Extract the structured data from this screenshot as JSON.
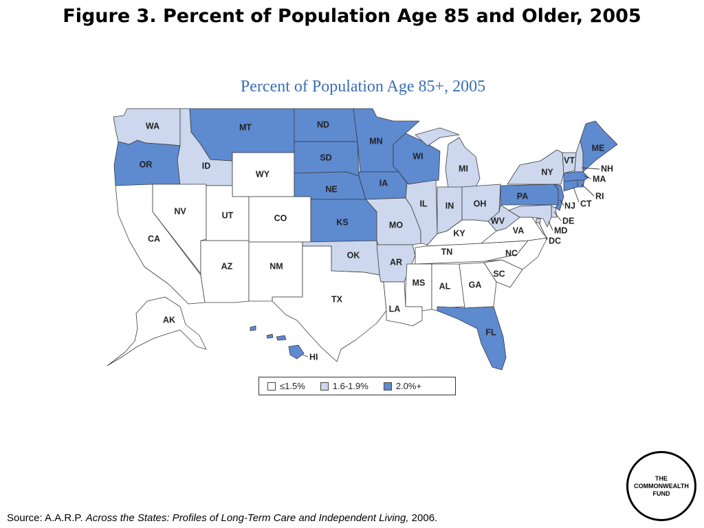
{
  "slide_title": "Figure 3. Percent of Population Age 85 and Older, 2005",
  "map_title": "Percent of Population Age 85+, 2005",
  "colors": {
    "low": "#ffffff",
    "mid": "#cdd8ee",
    "high": "#5e8ad0",
    "title_blue": "#3a6fb4"
  },
  "legend": [
    {
      "label": "≤1.5%",
      "category": "low"
    },
    {
      "label": "1.6-1.9%",
      "category": "mid"
    },
    {
      "label": "2.0%+",
      "category": "high"
    }
  ],
  "states": [
    {
      "code": "WA",
      "category": "mid"
    },
    {
      "code": "OR",
      "category": "high"
    },
    {
      "code": "CA",
      "category": "low"
    },
    {
      "code": "ID",
      "category": "mid"
    },
    {
      "code": "NV",
      "category": "low"
    },
    {
      "code": "MT",
      "category": "high"
    },
    {
      "code": "WY",
      "category": "low"
    },
    {
      "code": "UT",
      "category": "low"
    },
    {
      "code": "CO",
      "category": "low"
    },
    {
      "code": "AZ",
      "category": "low"
    },
    {
      "code": "NM",
      "category": "low"
    },
    {
      "code": "ND",
      "category": "high"
    },
    {
      "code": "SD",
      "category": "high"
    },
    {
      "code": "NE",
      "category": "high"
    },
    {
      "code": "KS",
      "category": "high"
    },
    {
      "code": "OK",
      "category": "mid"
    },
    {
      "code": "TX",
      "category": "low"
    },
    {
      "code": "MN",
      "category": "high"
    },
    {
      "code": "IA",
      "category": "high"
    },
    {
      "code": "MO",
      "category": "mid"
    },
    {
      "code": "AR",
      "category": "mid"
    },
    {
      "code": "LA",
      "category": "low"
    },
    {
      "code": "WI",
      "category": "high"
    },
    {
      "code": "IL",
      "category": "mid"
    },
    {
      "code": "MI",
      "category": "mid"
    },
    {
      "code": "IN",
      "category": "mid"
    },
    {
      "code": "OH",
      "category": "mid"
    },
    {
      "code": "KY",
      "category": "low"
    },
    {
      "code": "TN",
      "category": "low"
    },
    {
      "code": "MS",
      "category": "low"
    },
    {
      "code": "AL",
      "category": "low"
    },
    {
      "code": "GA",
      "category": "low"
    },
    {
      "code": "FL",
      "category": "high"
    },
    {
      "code": "SC",
      "category": "low"
    },
    {
      "code": "NC",
      "category": "low"
    },
    {
      "code": "VA",
      "category": "low"
    },
    {
      "code": "WV",
      "category": "mid"
    },
    {
      "code": "PA",
      "category": "high"
    },
    {
      "code": "NY",
      "category": "mid"
    },
    {
      "code": "VT",
      "category": "mid"
    },
    {
      "code": "NH",
      "category": "mid"
    },
    {
      "code": "ME",
      "category": "high"
    },
    {
      "code": "MA",
      "category": "high"
    },
    {
      "code": "RI",
      "category": "high"
    },
    {
      "code": "CT",
      "category": "high"
    },
    {
      "code": "NJ",
      "category": "high"
    },
    {
      "code": "DE",
      "category": "mid"
    },
    {
      "code": "MD",
      "category": "mid"
    },
    {
      "code": "DC",
      "category": "mid"
    },
    {
      "code": "AK",
      "category": "low"
    },
    {
      "code": "HI",
      "category": "high"
    }
  ],
  "logo_text": "THE COMMONWEALTH FUND",
  "source": {
    "prefix": "Source: A.A.R.P. ",
    "title": "Across the States: Profiles of Long-Term Care and Independent Living,",
    "suffix": " 2006."
  }
}
